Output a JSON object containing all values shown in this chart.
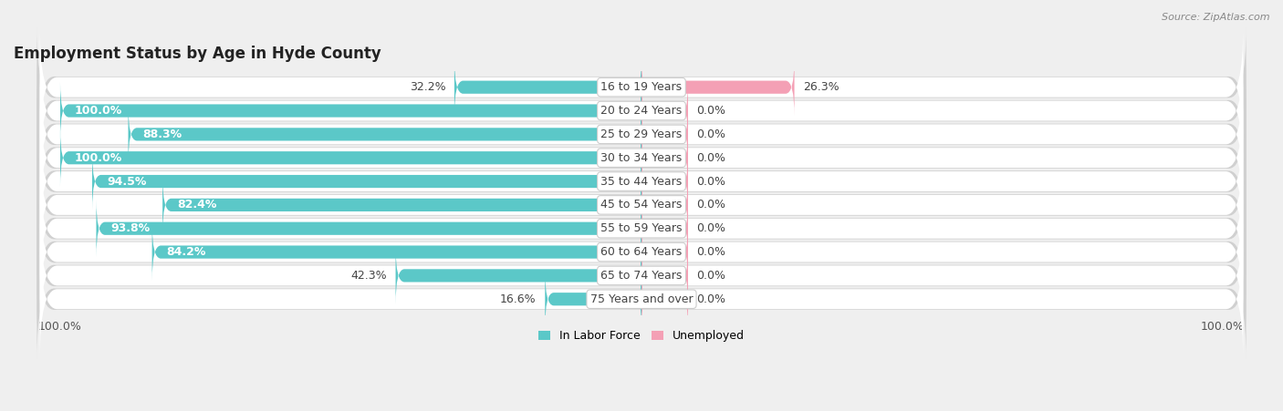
{
  "title": "Employment Status by Age in Hyde County",
  "source": "Source: ZipAtlas.com",
  "categories": [
    "16 to 19 Years",
    "20 to 24 Years",
    "25 to 29 Years",
    "30 to 34 Years",
    "35 to 44 Years",
    "45 to 54 Years",
    "55 to 59 Years",
    "60 to 64 Years",
    "65 to 74 Years",
    "75 Years and over"
  ],
  "labor_force": [
    32.2,
    100.0,
    88.3,
    100.0,
    94.5,
    82.4,
    93.8,
    84.2,
    42.3,
    16.6
  ],
  "unemployed": [
    26.3,
    0.0,
    0.0,
    0.0,
    0.0,
    0.0,
    0.0,
    0.0,
    0.0,
    0.0
  ],
  "unemployed_stub": 8.0,
  "labor_force_color": "#5bc8c8",
  "unemployed_color": "#f4a0b5",
  "row_bg_color": "#ffffff",
  "row_border_color": "#d8d8d8",
  "background_color": "#efefef",
  "title_fontsize": 12,
  "label_fontsize": 9,
  "axis_label_fontsize": 9,
  "bar_height": 0.55,
  "legend_labor": "In Labor Force",
  "legend_unemployed": "Unemployed",
  "x_left_label": "100.0%",
  "x_right_label": "100.0%",
  "total_width": 100
}
